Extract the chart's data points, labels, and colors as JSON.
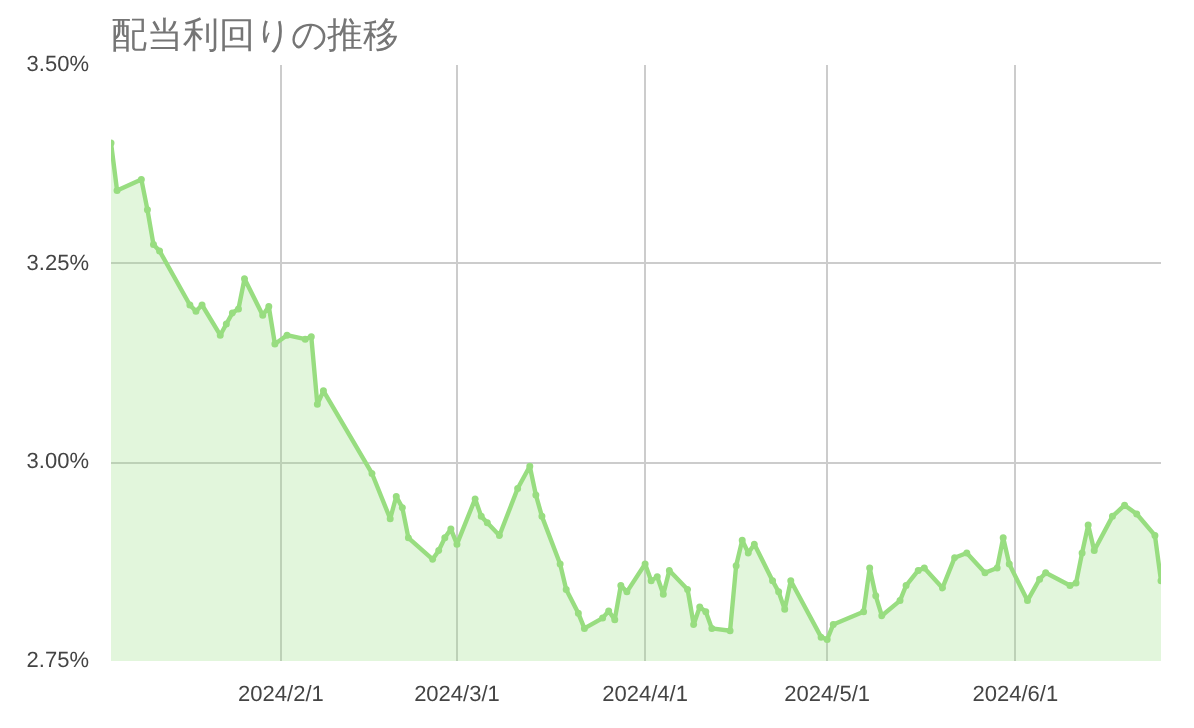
{
  "chart_data": {
    "type": "area",
    "title": "配当利回りの推移",
    "marker": "circle",
    "grid": true,
    "x": [
      "2024-01-04",
      "2024-01-05",
      "2024-01-09",
      "2024-01-10",
      "2024-01-11",
      "2024-01-12",
      "2024-01-17",
      "2024-01-18",
      "2024-01-19",
      "2024-01-22",
      "2024-01-23",
      "2024-01-24",
      "2024-01-25",
      "2024-01-26",
      "2024-01-29",
      "2024-01-30",
      "2024-01-31",
      "2024-02-02",
      "2024-02-05",
      "2024-02-06",
      "2024-02-07",
      "2024-02-08",
      "2024-02-16",
      "2024-02-19",
      "2024-02-20",
      "2024-02-21",
      "2024-02-22",
      "2024-02-26",
      "2024-02-27",
      "2024-02-28",
      "2024-02-29",
      "2024-03-01",
      "2024-03-04",
      "2024-03-05",
      "2024-03-06",
      "2024-03-08",
      "2024-03-11",
      "2024-03-13",
      "2024-03-14",
      "2024-03-15",
      "2024-03-18",
      "2024-03-19",
      "2024-03-21",
      "2024-03-22",
      "2024-03-25",
      "2024-03-26",
      "2024-03-27",
      "2024-03-28",
      "2024-03-29",
      "2024-04-01",
      "2024-04-02",
      "2024-04-03",
      "2024-04-04",
      "2024-04-05",
      "2024-04-08",
      "2024-04-09",
      "2024-04-10",
      "2024-04-11",
      "2024-04-12",
      "2024-04-15",
      "2024-04-16",
      "2024-04-17",
      "2024-04-18",
      "2024-04-19",
      "2024-04-22",
      "2024-04-23",
      "2024-04-24",
      "2024-04-25",
      "2024-04-30",
      "2024-05-01",
      "2024-05-02",
      "2024-05-07",
      "2024-05-08",
      "2024-05-09",
      "2024-05-10",
      "2024-05-13",
      "2024-05-14",
      "2024-05-16",
      "2024-05-17",
      "2024-05-20",
      "2024-05-22",
      "2024-05-24",
      "2024-05-27",
      "2024-05-29",
      "2024-05-30",
      "2024-05-31",
      "2024-06-03",
      "2024-06-05",
      "2024-06-06",
      "2024-06-10",
      "2024-06-11",
      "2024-06-12",
      "2024-06-13",
      "2024-06-14",
      "2024-06-17",
      "2024-06-19",
      "2024-06-21",
      "2024-06-24",
      "2024-06-25"
    ],
    "series": [
      {
        "color": "#98dd80",
        "values": [
          3.402,
          3.342,
          3.356,
          3.318,
          3.274,
          3.266,
          3.198,
          3.19,
          3.198,
          3.16,
          3.174,
          3.188,
          3.193,
          3.231,
          3.185,
          3.196,
          3.149,
          3.16,
          3.155,
          3.158,
          3.073,
          3.09,
          2.986,
          2.929,
          2.957,
          2.943,
          2.905,
          2.878,
          2.889,
          2.905,
          2.916,
          2.897,
          2.954,
          2.932,
          2.924,
          2.908,
          2.967,
          2.995,
          2.959,
          2.932,
          2.872,
          2.84,
          2.81,
          2.791,
          2.804,
          2.813,
          2.802,
          2.845,
          2.837,
          2.872,
          2.851,
          2.856,
          2.834,
          2.864,
          2.84,
          2.796,
          2.818,
          2.812,
          2.791,
          2.788,
          2.87,
          2.902,
          2.886,
          2.897,
          2.851,
          2.837,
          2.815,
          2.851,
          2.78,
          2.777,
          2.796,
          2.812,
          2.867,
          2.832,
          2.807,
          2.826,
          2.845,
          2.864,
          2.867,
          2.842,
          2.88,
          2.886,
          2.861,
          2.867,
          2.905,
          2.872,
          2.826,
          2.853,
          2.861,
          2.845,
          2.848,
          2.886,
          2.921,
          2.889,
          2.932,
          2.946,
          2.935,
          2.908,
          2.851
        ]
      }
    ],
    "xlim": [
      "2024-01-04",
      "2024-06-25"
    ],
    "xticks": [
      {
        "value": "2024-02-01",
        "label": "2024/2/1"
      },
      {
        "value": "2024-03-01",
        "label": "2024/3/1"
      },
      {
        "value": "2024-04-01",
        "label": "2024/4/1"
      },
      {
        "value": "2024-05-01",
        "label": "2024/5/1"
      },
      {
        "value": "2024-06-01",
        "label": "2024/6/1"
      }
    ],
    "ylim": [
      2.75,
      3.5
    ],
    "yticks": [
      {
        "value": 2.75,
        "label": "2.75%"
      },
      {
        "value": 3.0,
        "label": "3.00%"
      },
      {
        "value": 3.25,
        "label": "3.25%"
      },
      {
        "value": 3.5,
        "label": "3.50%"
      }
    ]
  }
}
